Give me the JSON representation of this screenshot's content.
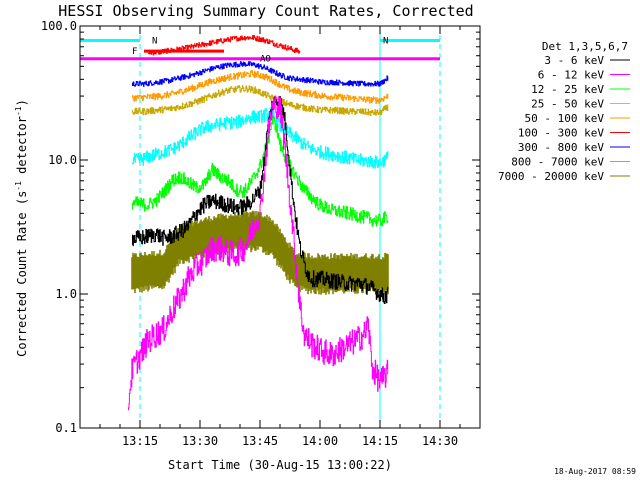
{
  "chart_data": {
    "type": "line",
    "title": "HESSI Observing Summary Count Rates, Corrected",
    "xlabel": "Start Time (30-Aug-15 13:00:22)",
    "ylabel_main": "Corrected Count Rate (s",
    "ylabel_sup1": "-1",
    "ylabel_mid": " detector",
    "ylabel_sup2": "-1",
    "ylabel_end": ")",
    "yscale": "log",
    "ylim": [
      0.1,
      100
    ],
    "xlim_minutes": [
      0,
      100
    ],
    "x_ticks": [
      {
        "label": "13:15",
        "minutes": 15
      },
      {
        "label": "13:30",
        "minutes": 30
      },
      {
        "label": "13:45",
        "minutes": 45
      },
      {
        "label": "14:00",
        "minutes": 60
      },
      {
        "label": "14:15",
        "minutes": 75
      },
      {
        "label": "14:30",
        "minutes": 90
      }
    ],
    "y_ticks": [
      {
        "label": "0.1",
        "value": 0.1
      },
      {
        "label": "1.0",
        "value": 1
      },
      {
        "label": "10.0",
        "value": 10
      },
      {
        "label": "100.0",
        "value": 100
      }
    ],
    "legend_header": "Det 1,3,5,6,7",
    "legend_position": "right",
    "timestamp": "18-Aug-2017 08:59",
    "series": [
      {
        "name": "3 - 6 keV",
        "color": "#000000",
        "noise": 0.06,
        "points": [
          [
            13,
            2.6
          ],
          [
            15,
            2.6
          ],
          [
            17,
            2.7
          ],
          [
            19,
            2.8
          ],
          [
            21,
            2.6
          ],
          [
            23,
            2.7
          ],
          [
            25,
            2.9
          ],
          [
            27,
            3.2
          ],
          [
            29,
            4.0
          ],
          [
            31,
            4.6
          ],
          [
            33,
            5.0
          ],
          [
            35,
            4.8
          ],
          [
            37,
            4.6
          ],
          [
            39,
            4.4
          ],
          [
            41,
            4.5
          ],
          [
            43,
            5.0
          ],
          [
            45,
            6.0
          ],
          [
            46,
            10
          ],
          [
            47,
            18
          ],
          [
            48,
            26
          ],
          [
            49,
            28
          ],
          [
            50,
            27
          ],
          [
            51,
            22
          ],
          [
            52,
            12
          ],
          [
            53,
            6
          ],
          [
            54,
            3.5
          ],
          [
            55,
            2.2
          ],
          [
            56,
            1.7
          ],
          [
            57,
            1.4
          ],
          [
            58,
            1.3
          ],
          [
            60,
            1.3
          ],
          [
            63,
            1.25
          ],
          [
            67,
            1.2
          ],
          [
            70,
            1.2
          ],
          [
            73,
            1.1
          ],
          [
            75,
            1.0
          ],
          [
            76,
            0.95
          ],
          [
            77,
            1.0
          ]
        ]
      },
      {
        "name": "6 - 12 keV",
        "color": "#ff00ff",
        "noise": 0.1,
        "points": [
          [
            12,
            0.15
          ],
          [
            13,
            0.27
          ],
          [
            15,
            0.35
          ],
          [
            17,
            0.45
          ],
          [
            19,
            0.5
          ],
          [
            21,
            0.55
          ],
          [
            23,
            0.75
          ],
          [
            25,
            0.95
          ],
          [
            27,
            1.3
          ],
          [
            29,
            1.6
          ],
          [
            31,
            1.8
          ],
          [
            33,
            2.2
          ],
          [
            35,
            2.2
          ],
          [
            37,
            2.0
          ],
          [
            39,
            2.0
          ],
          [
            41,
            2.2
          ],
          [
            43,
            3.0
          ],
          [
            45,
            4.0
          ],
          [
            46,
            8
          ],
          [
            47,
            16
          ],
          [
            48,
            24
          ],
          [
            49,
            26
          ],
          [
            50,
            24
          ],
          [
            51,
            14
          ],
          [
            52,
            7
          ],
          [
            53,
            3.5
          ],
          [
            54,
            1.6
          ],
          [
            55,
            0.8
          ],
          [
            56,
            0.5
          ],
          [
            58,
            0.42
          ],
          [
            60,
            0.38
          ],
          [
            63,
            0.35
          ],
          [
            66,
            0.4
          ],
          [
            69,
            0.45
          ],
          [
            71,
            0.5
          ],
          [
            72,
            0.6
          ],
          [
            73,
            0.28
          ],
          [
            75,
            0.22
          ],
          [
            77,
            0.26
          ]
        ]
      },
      {
        "name": "12 - 25 keV",
        "color": "#00ff00",
        "noise": 0.05,
        "points": [
          [
            13,
            4.8
          ],
          [
            15,
            4.7
          ],
          [
            17,
            4.6
          ],
          [
            19,
            5.0
          ],
          [
            21,
            5.8
          ],
          [
            23,
            7.0
          ],
          [
            25,
            7.5
          ],
          [
            27,
            6.8
          ],
          [
            29,
            6.2
          ],
          [
            31,
            6.5
          ],
          [
            33,
            8.5
          ],
          [
            35,
            7.5
          ],
          [
            37,
            7.0
          ],
          [
            39,
            6.0
          ],
          [
            41,
            5.8
          ],
          [
            43,
            7.0
          ],
          [
            45,
            9.0
          ],
          [
            47,
            14
          ],
          [
            48,
            20
          ],
          [
            49,
            18
          ],
          [
            50,
            13
          ],
          [
            52,
            9.5
          ],
          [
            54,
            7.5
          ],
          [
            56,
            6.0
          ],
          [
            58,
            5.2
          ],
          [
            60,
            4.6
          ],
          [
            63,
            4.2
          ],
          [
            67,
            4.0
          ],
          [
            70,
            3.8
          ],
          [
            73,
            3.6
          ],
          [
            75,
            3.5
          ],
          [
            77,
            3.8
          ]
        ]
      },
      {
        "name": "25 - 50 keV",
        "color": "#00ffff",
        "noise": 0.05,
        "points": [
          [
            13,
            10
          ],
          [
            15,
            10
          ],
          [
            17,
            10.5
          ],
          [
            19,
            11
          ],
          [
            21,
            11.5
          ],
          [
            23,
            12
          ],
          [
            25,
            13
          ],
          [
            27,
            14.5
          ],
          [
            29,
            16
          ],
          [
            31,
            17.5
          ],
          [
            33,
            18
          ],
          [
            35,
            18.5
          ],
          [
            37,
            19
          ],
          [
            39,
            19
          ],
          [
            41,
            20
          ],
          [
            43,
            21
          ],
          [
            45,
            21
          ],
          [
            47,
            22
          ],
          [
            48,
            22
          ],
          [
            49,
            20
          ],
          [
            50,
            18
          ],
          [
            52,
            16
          ],
          [
            54,
            14.5
          ],
          [
            56,
            13
          ],
          [
            58,
            12
          ],
          [
            60,
            11.5
          ],
          [
            63,
            11
          ],
          [
            66,
            10.5
          ],
          [
            69,
            10
          ],
          [
            72,
            9.8
          ],
          [
            75,
            9.5
          ],
          [
            77,
            10.5
          ]
        ]
      },
      {
        "name": "50 - 100 keV",
        "color": "#ff9a00",
        "noise": 0.025,
        "points": [
          [
            13,
            29
          ],
          [
            17,
            29.5
          ],
          [
            20,
            30
          ],
          [
            23,
            31
          ],
          [
            26,
            33
          ],
          [
            29,
            35
          ],
          [
            32,
            38
          ],
          [
            35,
            40
          ],
          [
            38,
            42
          ],
          [
            41,
            43
          ],
          [
            43,
            44
          ],
          [
            45,
            43
          ],
          [
            47,
            41
          ],
          [
            49,
            38
          ],
          [
            51,
            35
          ],
          [
            53,
            33
          ],
          [
            55,
            32
          ],
          [
            58,
            31
          ],
          [
            61,
            30
          ],
          [
            64,
            29.5
          ],
          [
            67,
            29
          ],
          [
            70,
            28.5
          ],
          [
            73,
            28
          ],
          [
            75,
            28
          ],
          [
            77,
            30
          ]
        ]
      },
      {
        "name": "100 - 300 keV",
        "color": "#ff0000",
        "noise": 0.02,
        "points": [
          [
            17,
            63
          ],
          [
            20,
            64
          ],
          [
            23,
            66
          ],
          [
            26,
            68
          ],
          [
            29,
            71
          ],
          [
            32,
            74
          ],
          [
            35,
            77
          ],
          [
            38,
            80
          ],
          [
            41,
            82
          ],
          [
            43,
            82
          ],
          [
            45,
            80
          ],
          [
            47,
            77
          ],
          [
            49,
            73
          ],
          [
            51,
            70
          ],
          [
            53,
            67
          ],
          [
            55,
            64
          ]
        ]
      },
      {
        "name": "300 - 800 keV",
        "color": "#0000ff",
        "noise": 0.02,
        "points": [
          [
            13,
            37
          ],
          [
            16,
            37
          ],
          [
            19,
            38
          ],
          [
            22,
            39
          ],
          [
            25,
            41
          ],
          [
            28,
            43
          ],
          [
            31,
            46
          ],
          [
            34,
            49
          ],
          [
            37,
            51
          ],
          [
            40,
            52
          ],
          [
            42,
            52
          ],
          [
            44,
            51
          ],
          [
            46,
            49
          ],
          [
            48,
            46
          ],
          [
            50,
            43
          ],
          [
            52,
            41
          ],
          [
            55,
            40
          ],
          [
            58,
            39
          ],
          [
            61,
            38
          ],
          [
            64,
            38
          ],
          [
            67,
            37.5
          ],
          [
            70,
            37
          ],
          [
            73,
            37
          ],
          [
            75,
            37
          ],
          [
            77,
            41
          ]
        ]
      },
      {
        "name": "800 - 7000 keV",
        "color": "#c8a800",
        "noise": 0.025,
        "points": [
          [
            13,
            23
          ],
          [
            16,
            23
          ],
          [
            19,
            23.5
          ],
          [
            22,
            24
          ],
          [
            25,
            25
          ],
          [
            28,
            26.5
          ],
          [
            31,
            28.5
          ],
          [
            34,
            31
          ],
          [
            37,
            33
          ],
          [
            40,
            34
          ],
          [
            42,
            34
          ],
          [
            44,
            33
          ],
          [
            46,
            31
          ],
          [
            48,
            29
          ],
          [
            50,
            27.5
          ],
          [
            52,
            26
          ],
          [
            55,
            25
          ],
          [
            58,
            24
          ],
          [
            61,
            23.5
          ],
          [
            64,
            23.5
          ],
          [
            67,
            23
          ],
          [
            70,
            23
          ],
          [
            73,
            22.5
          ],
          [
            75,
            22.5
          ],
          [
            77,
            25
          ]
        ]
      },
      {
        "name": "7000 - 20000 keV",
        "color": "#808000",
        "noise": 0.2,
        "band": true,
        "points": [
          [
            13,
            1.45
          ],
          [
            17,
            1.5
          ],
          [
            21,
            1.55
          ],
          [
            25,
            2.4
          ],
          [
            29,
            2.6
          ],
          [
            33,
            2.8
          ],
          [
            37,
            2.9
          ],
          [
            41,
            3.0
          ],
          [
            45,
            3.0
          ],
          [
            48,
            2.7
          ],
          [
            51,
            2.0
          ],
          [
            54,
            1.5
          ],
          [
            58,
            1.45
          ],
          [
            62,
            1.45
          ],
          [
            66,
            1.45
          ],
          [
            70,
            1.45
          ],
          [
            74,
            1.45
          ],
          [
            77,
            1.45
          ]
        ]
      }
    ],
    "flags": [
      {
        "label": "N",
        "color": "#00ffff",
        "start": 0,
        "end": 15,
        "value": 78
      },
      {
        "label": "N",
        "color": "#00ffff",
        "start": 75,
        "end": 90,
        "value": 78
      },
      {
        "label": "F",
        "color": "#ff0000",
        "start": 16,
        "end": 36,
        "value": 65
      },
      {
        "label": "AO",
        "color": "#ff00ff",
        "start": 0,
        "end": 90,
        "value": 57
      }
    ],
    "vlines": [
      {
        "minutes": 0,
        "style": "solid"
      },
      {
        "minutes": 75,
        "style": "solid"
      },
      {
        "minutes": 15,
        "style": "dashed"
      },
      {
        "minutes": 90,
        "style": "dashed"
      }
    ],
    "colors": {
      "flag_line": "#00ffff"
    }
  }
}
